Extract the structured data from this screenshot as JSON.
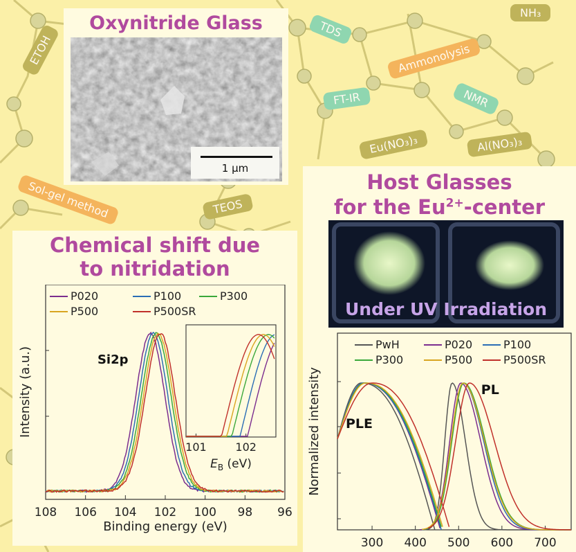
{
  "background_tags": [
    {
      "id": "etoh",
      "label": "ETOH",
      "color": "#bfb35a"
    },
    {
      "id": "tds",
      "label": "TDS",
      "color": "#8fd6b0"
    },
    {
      "id": "nh3",
      "label": "NH₃",
      "color": "#bfb35a"
    },
    {
      "id": "ammonolysis",
      "label": "Ammonolysis",
      "color": "#f4b45c"
    },
    {
      "id": "ftir",
      "label": "FT-IR",
      "color": "#8fd6b0"
    },
    {
      "id": "nmr",
      "label": "NMR",
      "color": "#8fd6b0"
    },
    {
      "id": "eunitrate",
      "label": "Eu(NO₃)₃",
      "color": "#bfb35a"
    },
    {
      "id": "alnitrate",
      "label": "Al(NO₃)₃",
      "color": "#bfb35a"
    },
    {
      "id": "solgel",
      "label": "Sol-gel method",
      "color": "#f4b45c"
    },
    {
      "id": "teos",
      "label": "TEOS",
      "color": "#bfb35a"
    }
  ],
  "sem_panel": {
    "title": "Oxynitride Glass",
    "scale_bar_label": "1 μm"
  },
  "host_panel": {
    "title_line1": "Host Glasses",
    "title_line2_pre": "for the Eu",
    "title_sup": "2+",
    "title_line2_post": "-center",
    "photo_caption": "Under UV Irradiation"
  },
  "xps_panel": {
    "title_line1": "Chemical shift due",
    "title_line2": "to nitridation"
  },
  "colors": {
    "P020": "#7b2d8e",
    "P100": "#2a6db5",
    "P300": "#3aa83a",
    "P500": "#d9a520",
    "P500SR": "#c0302a",
    "PwH": "#555555",
    "title": "#b04a9e"
  },
  "chart_data": [
    {
      "type": "line",
      "id": "xps",
      "xlabel": "Binding energy (eV)",
      "ylabel": "Intensity (a.u.)",
      "xlim": [
        108,
        96
      ],
      "xticks": [
        108,
        106,
        104,
        102,
        100,
        98,
        96
      ],
      "peak_label": "Si2p",
      "legend": [
        "P020",
        "P100",
        "P300",
        "P500",
        "P500SR"
      ],
      "series": [
        {
          "name": "P020",
          "center": 102.75,
          "width": 1.05
        },
        {
          "name": "P100",
          "center": 102.6,
          "width": 1.05
        },
        {
          "name": "P300",
          "center": 102.45,
          "width": 1.07
        },
        {
          "name": "P500",
          "center": 102.35,
          "width": 1.07
        },
        {
          "name": "P500SR",
          "center": 102.25,
          "width": 1.08
        }
      ],
      "inset": {
        "xlim": [
          100.8,
          102.6
        ],
        "xticks": [
          101,
          102
        ],
        "xlabel_pre": "E",
        "xlabel_sub": "B",
        "xlabel_post": " (eV)"
      }
    },
    {
      "type": "line",
      "id": "pl",
      "xlabel": "",
      "ylabel": "Normalized intensity",
      "xlim": [
        220,
        760
      ],
      "xticks": [
        300,
        400,
        500,
        600,
        700
      ],
      "annotations": [
        "PLE",
        "PL"
      ],
      "legend": [
        "PwH",
        "P020",
        "P100",
        "P300",
        "P500",
        "P500SR"
      ],
      "series": [
        {
          "name": "PwH",
          "ple_peak": 275,
          "ple_edge": 445,
          "pl_peak": 485,
          "pl_sigma": 32
        },
        {
          "name": "P020",
          "ple_peak": 280,
          "ple_edge": 458,
          "pl_peak": 505,
          "pl_sigma": 48
        },
        {
          "name": "P100",
          "ple_peak": 280,
          "ple_edge": 460,
          "pl_peak": 510,
          "pl_sigma": 50
        },
        {
          "name": "P300",
          "ple_peak": 283,
          "ple_edge": 462,
          "pl_peak": 512,
          "pl_sigma": 52
        },
        {
          "name": "P500",
          "ple_peak": 285,
          "ple_edge": 465,
          "pl_peak": 510,
          "pl_sigma": 52
        },
        {
          "name": "P500SR",
          "ple_peak": 300,
          "ple_edge": 480,
          "pl_peak": 525,
          "pl_sigma": 60
        }
      ]
    }
  ]
}
